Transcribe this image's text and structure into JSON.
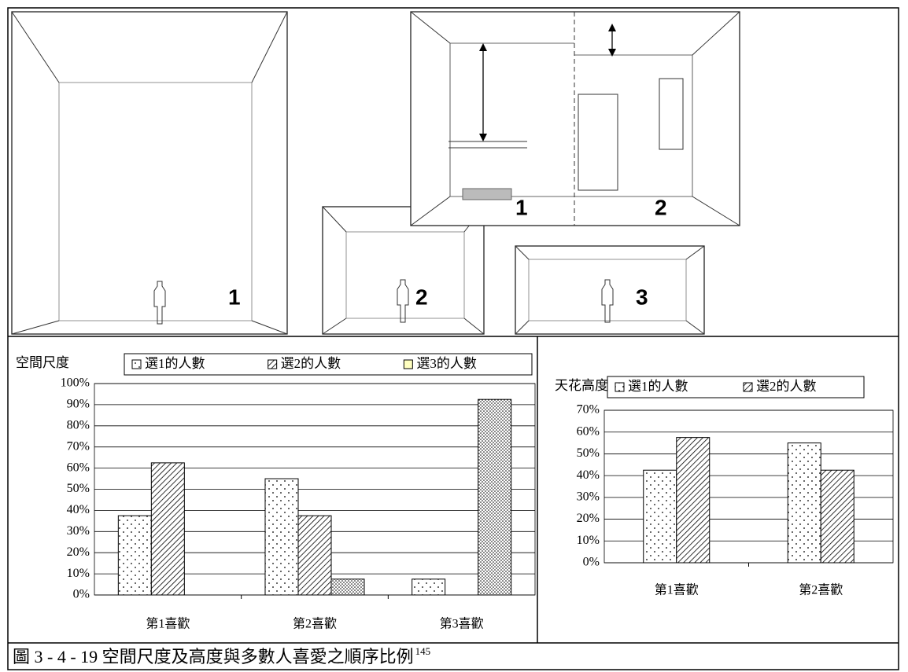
{
  "figure_labels": [
    "1",
    "2",
    "3",
    "1",
    "2"
  ],
  "chart_data": [
    {
      "type": "bar",
      "title": "空間尺度",
      "categories": [
        "第1喜歡",
        "第2喜歡",
        "第3喜歡"
      ],
      "series": [
        {
          "name": "選1的人數",
          "pattern": "dots",
          "values": [
            37.5,
            55,
            7.5
          ]
        },
        {
          "name": "選2的人數",
          "pattern": "hatch",
          "values": [
            62.5,
            37.5,
            0
          ]
        },
        {
          "name": "選3的人數",
          "pattern": "dense-dots",
          "color": "#ffffc0",
          "values": [
            0,
            7.5,
            92.5
          ]
        }
      ],
      "ylim": [
        0,
        100
      ],
      "yticks": [
        {
          "value": 0,
          "label": "0%"
        },
        {
          "value": 10,
          "label": "10%"
        },
        {
          "value": 20,
          "label": "20%"
        },
        {
          "value": 30,
          "label": "30%"
        },
        {
          "value": 40,
          "label": "40%"
        },
        {
          "value": 50,
          "label": "50%"
        },
        {
          "value": 60,
          "label": "60%"
        },
        {
          "value": 70,
          "label": "70%"
        },
        {
          "value": 80,
          "label": "80%"
        },
        {
          "value": 90,
          "label": "90%"
        },
        {
          "value": 100,
          "label": "100%"
        }
      ],
      "grid": true
    },
    {
      "type": "bar",
      "title": "天花高度",
      "categories": [
        "第1喜歡",
        "第2喜歡"
      ],
      "series": [
        {
          "name": "選1的人數",
          "pattern": "dots",
          "values": [
            42.5,
            55
          ]
        },
        {
          "name": "選2的人數",
          "pattern": "hatch",
          "values": [
            57.5,
            42.5
          ]
        }
      ],
      "ylim": [
        0,
        70
      ],
      "yticks": [
        {
          "value": 0,
          "label": "0%"
        },
        {
          "value": 10,
          "label": "10%"
        },
        {
          "value": 20,
          "label": "20%"
        },
        {
          "value": 30,
          "label": "30%"
        },
        {
          "value": 40,
          "label": "40%"
        },
        {
          "value": 50,
          "label": "50%"
        },
        {
          "value": 60,
          "label": "60%"
        },
        {
          "value": 70,
          "label": "70%"
        }
      ],
      "grid": true
    }
  ],
  "caption": {
    "text": "圖 3 - 4 - 19  空間尺度及高度與多數人喜愛之順序比例",
    "note": "145"
  }
}
